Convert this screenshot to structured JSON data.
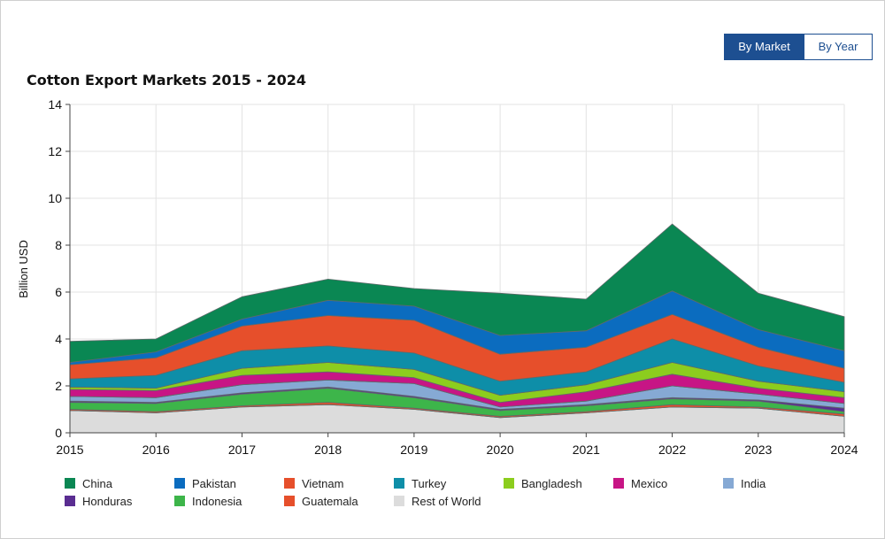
{
  "toggle": {
    "by_market": "By Market",
    "by_year": "By Year",
    "active": "by_market"
  },
  "chart_data": {
    "type": "area",
    "stacked": true,
    "title": "Cotton Export Markets 2015 - 2024",
    "xlabel": "",
    "ylabel": "Billion USD",
    "x": [
      2015,
      2016,
      2017,
      2018,
      2019,
      2020,
      2021,
      2022,
      2023,
      2024
    ],
    "x_tick_labels": [
      "2015",
      "2016",
      "2017",
      "2018",
      "2019",
      "2020",
      "2021",
      "2022",
      "2023",
      "2024"
    ],
    "ylim": [
      0,
      14
    ],
    "y_ticks": [
      0,
      2,
      4,
      6,
      8,
      10,
      12,
      14
    ],
    "y_tick_labels": [
      "0",
      "2",
      "4",
      "6",
      "8",
      "10",
      "12",
      "14"
    ],
    "grid": true,
    "legend_position": "bottom",
    "series": [
      {
        "name": "Rest of World",
        "color": "#dcdcdc",
        "values": [
          0.95,
          0.85,
          1.1,
          1.2,
          1.0,
          0.65,
          0.85,
          1.1,
          1.05,
          0.7
        ]
      },
      {
        "name": "Guatemala",
        "color": "#e64f2b",
        "values": [
          0.05,
          0.05,
          0.05,
          0.1,
          0.05,
          0.05,
          0.05,
          0.1,
          0.05,
          0.1
        ]
      },
      {
        "name": "Indonesia",
        "color": "#3db54a",
        "values": [
          0.3,
          0.35,
          0.5,
          0.6,
          0.45,
          0.25,
          0.25,
          0.25,
          0.25,
          0.1
        ]
      },
      {
        "name": "Honduras",
        "color": "#5a2d91",
        "values": [
          0.05,
          0.05,
          0.05,
          0.05,
          0.05,
          0.05,
          0.05,
          0.05,
          0.05,
          0.15
        ]
      },
      {
        "name": "India",
        "color": "#86a9d4",
        "values": [
          0.2,
          0.2,
          0.35,
          0.3,
          0.55,
          0.1,
          0.15,
          0.5,
          0.25,
          0.2
        ]
      },
      {
        "name": "Mexico",
        "color": "#c71585",
        "values": [
          0.3,
          0.3,
          0.4,
          0.35,
          0.25,
          0.2,
          0.4,
          0.5,
          0.25,
          0.25
        ]
      },
      {
        "name": "Bangladesh",
        "color": "#8ccd1e",
        "values": [
          0.1,
          0.1,
          0.3,
          0.4,
          0.35,
          0.3,
          0.3,
          0.5,
          0.3,
          0.25
        ]
      },
      {
        "name": "Turkey",
        "color": "#0e8ea8",
        "values": [
          0.35,
          0.55,
          0.75,
          0.7,
          0.7,
          0.6,
          0.55,
          1.0,
          0.65,
          0.4
        ]
      },
      {
        "name": "Vietnam",
        "color": "#e64f2b",
        "values": [
          0.6,
          0.75,
          1.05,
          1.3,
          1.4,
          1.15,
          1.05,
          1.05,
          0.8,
          0.6
        ]
      },
      {
        "name": "Pakistan",
        "color": "#0b6cbf",
        "values": [
          0.1,
          0.25,
          0.3,
          0.65,
          0.6,
          0.8,
          0.7,
          1.0,
          0.75,
          0.75
        ]
      },
      {
        "name": "China",
        "color": "#0a8753",
        "values": [
          0.9,
          0.55,
          0.95,
          0.9,
          0.75,
          1.8,
          1.35,
          2.85,
          1.55,
          1.45
        ]
      }
    ]
  },
  "legend": [
    {
      "label": "China",
      "color": "#0a8753"
    },
    {
      "label": "Pakistan",
      "color": "#0b6cbf"
    },
    {
      "label": "Vietnam",
      "color": "#e64f2b"
    },
    {
      "label": "Turkey",
      "color": "#0e8ea8"
    },
    {
      "label": "Bangladesh",
      "color": "#8ccd1e"
    },
    {
      "label": "Mexico",
      "color": "#c71585"
    },
    {
      "label": "India",
      "color": "#86a9d4"
    },
    {
      "label": "Honduras",
      "color": "#5a2d91"
    },
    {
      "label": "Indonesia",
      "color": "#3db54a"
    },
    {
      "label": "Guatemala",
      "color": "#e64f2b"
    },
    {
      "label": "Rest of World",
      "color": "#dcdcdc"
    }
  ]
}
